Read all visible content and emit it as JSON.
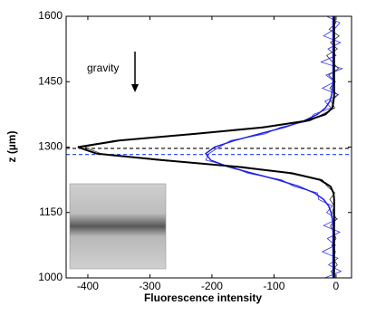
{
  "chart_data": {
    "type": "line",
    "xlabel": "Fluorescence intensity",
    "ylabel": "z (µm)",
    "annotation": "gravity",
    "xlim": [
      -435,
      25
    ],
    "xticks": [
      -400,
      -300,
      -200,
      -100,
      0
    ],
    "ylim": [
      1000,
      1600
    ],
    "yticks": [
      1000,
      1150,
      1300,
      1450,
      1600
    ],
    "z": [
      1000,
      1015,
      1030,
      1045,
      1060,
      1075,
      1090,
      1105,
      1120,
      1135,
      1150,
      1165,
      1180,
      1195,
      1210,
      1225,
      1240,
      1255,
      1270,
      1285,
      1300,
      1315,
      1330,
      1345,
      1360,
      1375,
      1390,
      1405,
      1420,
      1435,
      1450,
      1465,
      1480,
      1495,
      1510,
      1525,
      1540,
      1555,
      1570,
      1585,
      1600
    ],
    "series": [
      {
        "color": "#3030ff",
        "width": 0.8,
        "values": [
          -18,
          8,
          -12,
          3,
          -22,
          -1,
          -14,
          6,
          -20,
          2,
          -15,
          -6,
          -28,
          -30,
          -68,
          -88,
          -142,
          -168,
          -210,
          -205,
          -188,
          -170,
          -115,
          -90,
          -45,
          -36,
          -8,
          -18,
          4,
          -22,
          -2,
          -16,
          10,
          -24,
          0,
          -13,
          7,
          -20,
          -3,
          6,
          -15
        ]
      },
      {
        "color": "#333333",
        "width": 0.8,
        "values": [
          -2,
          -8,
          2,
          -5,
          -1,
          -7,
          0,
          -4,
          -9,
          1,
          -6,
          -3,
          -10,
          -2,
          -14,
          -22,
          -78,
          -150,
          -290,
          -379,
          -405,
          -358,
          -221,
          -125,
          -42,
          -22,
          -2,
          -8,
          3,
          -10,
          -1,
          -12,
          4,
          -6,
          -15,
          2,
          -9,
          5,
          -11,
          0,
          -4
        ]
      },
      {
        "color": "#2020e0",
        "width": 1.5,
        "values": [
          -5,
          -5,
          -5,
          -5,
          -5,
          -5,
          -5,
          -5,
          -5,
          -6,
          -8,
          -12,
          -20,
          -35,
          -60,
          -94,
          -135,
          -174,
          -202,
          -210,
          -196,
          -164,
          -124,
          -84,
          -52,
          -30,
          -17,
          -10,
          -7,
          -6,
          -5,
          -5,
          -5,
          -5,
          -5,
          -5,
          -5,
          -5,
          -5,
          -5,
          -5
        ]
      },
      {
        "color": "#000000",
        "width": 2,
        "values": [
          -3,
          -3,
          -3,
          -3,
          -3,
          -3,
          -3,
          -3,
          -3,
          -3,
          -3,
          -3,
          -3,
          -4,
          -9,
          -26,
          -71,
          -159,
          -280,
          -386,
          -416,
          -350,
          -230,
          -118,
          -49,
          -17,
          -6,
          -4,
          -3,
          -3,
          -3,
          -3,
          -3,
          -3,
          -3,
          -3,
          -3,
          -3,
          -3,
          -3,
          -3
        ]
      }
    ],
    "hlines": [
      {
        "value": 1297,
        "color": "#000000"
      },
      {
        "value": 1283,
        "color": "#1a3cff"
      }
    ]
  }
}
